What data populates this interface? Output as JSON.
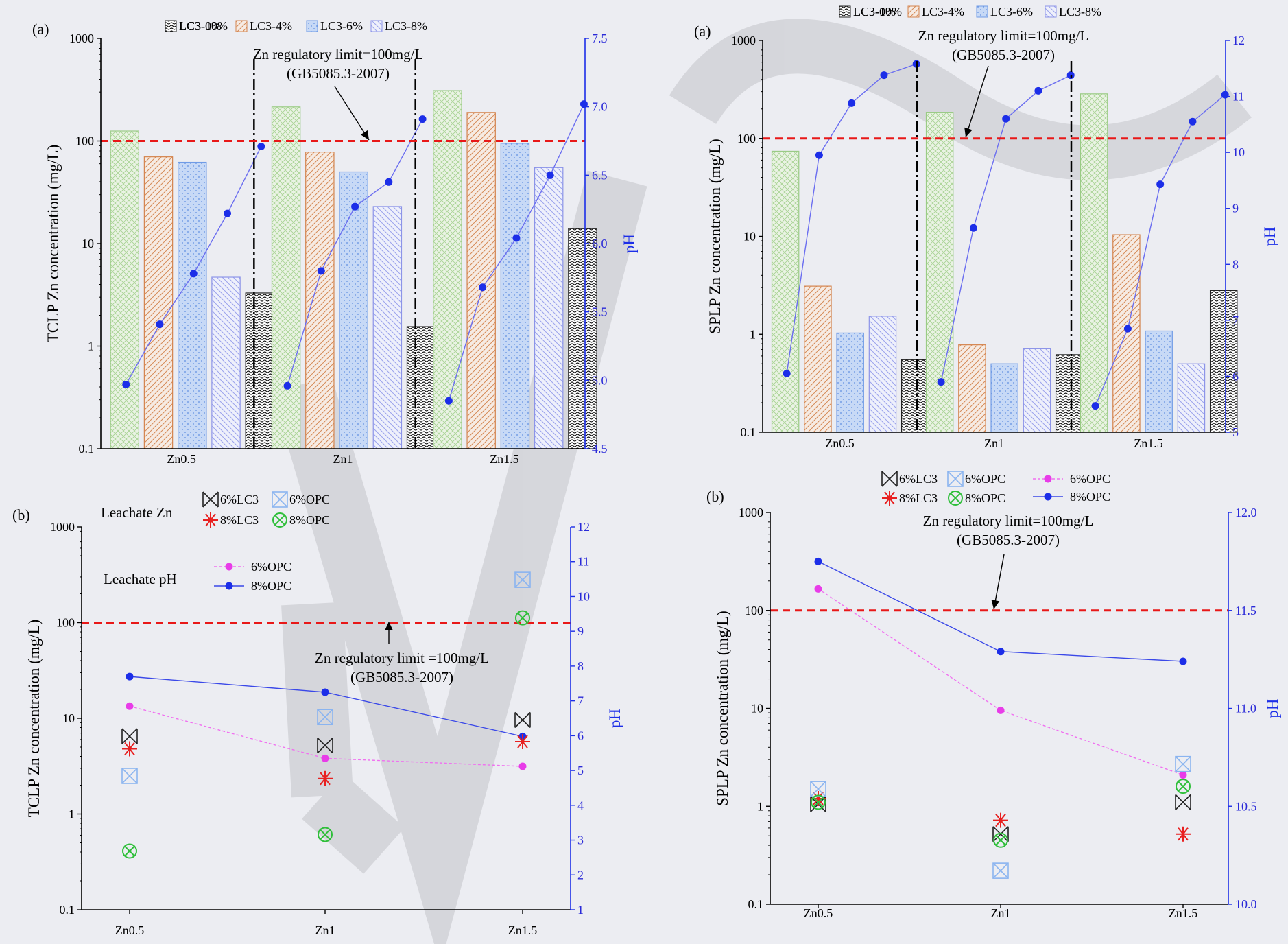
{
  "colors": {
    "lc3_0": "#9acb85",
    "lc3_4": "#d4844e",
    "lc3_6": "#6f9be6",
    "lc3_8": "#8c94e8",
    "lc3_10": "#222222",
    "ph_line": "#1c2ee8",
    "limit": "#e81818",
    "magenta": "#e83ce8",
    "axis_right": "#1c2ee8"
  },
  "chart_data": [
    {
      "id": "tclp-bars",
      "panel_label": "(a)",
      "type": "bar",
      "log_y": true,
      "ylabel": "TCLP  Zn concentration  (mg/L)",
      "y2label": "pH",
      "ylim": [
        0.1,
        1000
      ],
      "y2lim": [
        4.5,
        7.5
      ],
      "yticks": [
        "0.1",
        "1",
        "10",
        "100",
        "1000"
      ],
      "y2ticks": [
        "4.5",
        "5.0",
        "5.5",
        "6.0",
        "6.5",
        "7.0",
        "7.5"
      ],
      "categories": [
        "Zn0.5",
        "Zn1",
        "Zn1.5"
      ],
      "series": [
        {
          "name": "LC3-0%",
          "values": [
            125,
            215,
            310
          ]
        },
        {
          "name": "LC3-4%",
          "values": [
            70,
            78,
            190
          ]
        },
        {
          "name": "LC3-6%",
          "values": [
            62,
            50,
            95
          ]
        },
        {
          "name": "LC3-8%",
          "values": [
            4.7,
            23,
            55
          ]
        },
        {
          "name": "LC3-10%",
          "values": [
            3.3,
            1.55,
            14
          ]
        }
      ],
      "ph": [
        [
          4.97,
          5.41,
          5.78,
          6.22,
          6.71
        ],
        [
          4.96,
          5.8,
          6.27,
          6.45,
          6.91
        ],
        [
          4.85,
          5.68,
          6.04,
          6.5,
          7.02
        ]
      ],
      "limit_value": 100,
      "annotation": [
        "Zn regulatory limit=100mg/L",
        "(GB5085.3-2007)"
      ]
    },
    {
      "id": "splp-bars",
      "panel_label": "(a)",
      "type": "bar",
      "log_y": true,
      "ylabel": "SPLP  Zn concentration  (mg/L)",
      "y2label": "pH",
      "ylim": [
        0.1,
        1000
      ],
      "y2lim": [
        5,
        12
      ],
      "yticks": [
        "0.1",
        "1",
        "10",
        "100",
        "1000"
      ],
      "y2ticks": [
        "5",
        "6",
        "7",
        "8",
        "9",
        "10",
        "11",
        "12"
      ],
      "categories": [
        "Zn0.5",
        "Zn1",
        "Zn1.5"
      ],
      "series": [
        {
          "name": "LC3-0%",
          "values": [
            74,
            185,
            285
          ]
        },
        {
          "name": "LC3-4%",
          "values": [
            3.1,
            0.78,
            10.4
          ]
        },
        {
          "name": "LC3-6%",
          "values": [
            1.03,
            0.5,
            1.08
          ]
        },
        {
          "name": "LC3-8%",
          "values": [
            1.53,
            0.72,
            0.5
          ]
        },
        {
          "name": "LC3-10%",
          "values": [
            0.55,
            0.62,
            2.8
          ]
        }
      ],
      "ph": [
        [
          6.05,
          9.95,
          10.88,
          11.38,
          11.58
        ],
        [
          5.9,
          8.65,
          10.6,
          11.1,
          11.38
        ],
        [
          5.47,
          6.85,
          9.43,
          10.55,
          11.03
        ]
      ],
      "limit_value": 100,
      "annotation": [
        "Zn regulatory limit=100mg/L",
        "(GB5085.3-2007)"
      ]
    },
    {
      "id": "tclp-scatter",
      "panel_label": "(b)",
      "type": "scatter",
      "log_y": true,
      "ylabel": "TCLP  Zn concentration  (mg/L)",
      "y2label": "pH",
      "ylim": [
        0.1,
        1000
      ],
      "y2lim": [
        1,
        12
      ],
      "yticks": [
        "0.1",
        "1",
        "10",
        "100",
        "1000"
      ],
      "y2ticks": [
        "1",
        "2",
        "3",
        "4",
        "5",
        "6",
        "7",
        "8",
        "9",
        "10",
        "11",
        "12"
      ],
      "categories": [
        "Zn0.5",
        "Zn1",
        "Zn1.5"
      ],
      "series": [
        {
          "name": "6%LC3",
          "values": [
            6.5,
            5.2,
            9.6
          ]
        },
        {
          "name": "8%LC3",
          "values": [
            4.8,
            2.35,
            5.7
          ]
        },
        {
          "name": "6%OPC",
          "values": [
            2.5,
            10.3,
            280
          ]
        },
        {
          "name": "8%OPC",
          "values": [
            0.41,
            0.61,
            112
          ]
        }
      ],
      "ph_series": [
        {
          "name": "6%OPC",
          "values": [
            6.85,
            5.35,
            5.12
          ]
        },
        {
          "name": "8%OPC",
          "values": [
            7.7,
            7.25,
            5.98
          ]
        }
      ],
      "legend_title_conc": "Leachate Zn",
      "legend_title_ph": "Leachate pH",
      "limit_value": 100,
      "annotation": [
        "Zn regulatory  limit =100mg/L",
        "(GB5085.3-2007)"
      ]
    },
    {
      "id": "splp-scatter",
      "panel_label": "(b)",
      "type": "scatter",
      "log_y": true,
      "ylabel": "SPLP  Zn concentration  (mg/L)",
      "y2label": "pH",
      "ylim": [
        0.1,
        1000
      ],
      "y2lim": [
        10.0,
        12.0
      ],
      "yticks": [
        "0.1",
        "1",
        "10",
        "100",
        "1000"
      ],
      "y2ticks": [
        "10.0",
        "10.5",
        "11.0",
        "11.5",
        "12.0"
      ],
      "categories": [
        "Zn0.5",
        "Zn1",
        "Zn1.5"
      ],
      "series": [
        {
          "name": "6%LC3",
          "values": [
            1.05,
            0.52,
            1.1
          ]
        },
        {
          "name": "8%LC3",
          "values": [
            1.2,
            0.72,
            0.52
          ]
        },
        {
          "name": "6%OPC",
          "values": [
            1.5,
            0.22,
            2.7
          ]
        },
        {
          "name": "8%OPC",
          "values": [
            1.1,
            0.45,
            1.6
          ]
        }
      ],
      "ph_series": [
        {
          "name": "6%OPC",
          "values": [
            11.61,
            10.99,
            10.66
          ]
        },
        {
          "name": "8%OPC",
          "values": [
            11.75,
            11.29,
            11.24
          ]
        }
      ],
      "limit_value": 100,
      "annotation": [
        "Zn regulatory limit=100mg/L",
        "(GB5085.3-2007)"
      ]
    }
  ]
}
